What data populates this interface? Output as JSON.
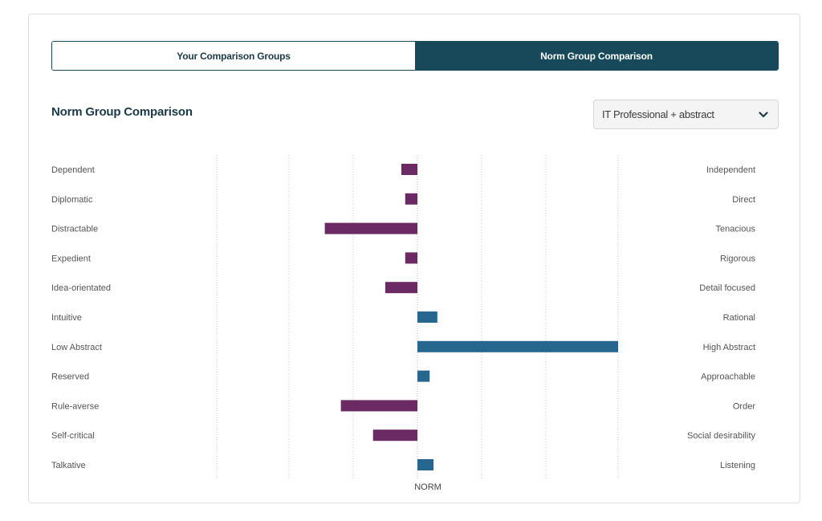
{
  "tabs": [
    {
      "label": "Your Comparison Groups",
      "active": false
    },
    {
      "label": "Norm Group Comparison",
      "active": true
    }
  ],
  "section_title": "Norm Group Comparison",
  "dropdown": {
    "selected": "IT Professional + abstract",
    "icon": "chevron-down-icon"
  },
  "colors": {
    "negative": "#6b2a63",
    "positive": "#27678f",
    "accent": "#17495a"
  },
  "chart_data": {
    "type": "bar",
    "orientation": "horizontal",
    "categories": [
      "Dependent",
      "Diplomatic",
      "Distractable",
      "Expedient",
      "Idea-orientated",
      "Intuitive",
      "Low Abstract",
      "Reserved",
      "Rule-averse",
      "Self-critical",
      "Talkative"
    ],
    "right_labels": [
      "Independent",
      "Direct",
      "Tenacious",
      "Rigorous",
      "Detail focused",
      "Rational",
      "High Abstract",
      "Approachable",
      "Order",
      "Social desirability",
      "Listening"
    ],
    "values": [
      -0.25,
      -0.19,
      -1.44,
      -0.19,
      -0.5,
      0.31,
      3.12,
      0.19,
      -1.19,
      -0.69,
      0.25
    ],
    "xlim": [
      -3.12,
      3.12
    ],
    "baseline": 0,
    "baseline_label": "NORM",
    "grid": true,
    "title": "",
    "xlabel": "",
    "ylabel": ""
  }
}
